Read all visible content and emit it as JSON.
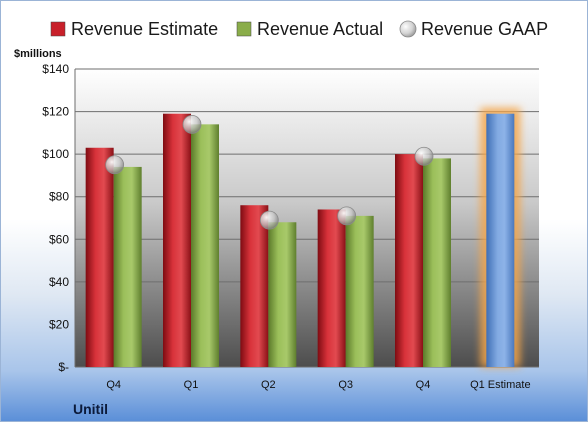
{
  "legend": [
    {
      "label": "Revenue Estimate",
      "color": "#c8202a"
    },
    {
      "label": "Revenue Actual",
      "color": "#8aad4a"
    },
    {
      "label": "Revenue GAAP",
      "color": "#c0c0c0"
    }
  ],
  "company": "Unitil",
  "chart_data": {
    "type": "bar",
    "ylabel": "$millions",
    "ylim": [
      0,
      140
    ],
    "yticks": [
      0,
      20,
      40,
      60,
      80,
      100,
      120,
      140
    ],
    "ytick_labels": [
      "$-",
      "$20",
      "$40",
      "$60",
      "$80",
      "$100",
      "$120",
      "$140"
    ],
    "categories": [
      "Q4",
      "Q1",
      "Q2",
      "Q3",
      "Q4",
      "Q1 Estimate"
    ],
    "series": [
      {
        "name": "Revenue Estimate",
        "color": "#c8202a",
        "values": [
          103,
          119,
          76,
          74,
          100,
          null
        ]
      },
      {
        "name": "Revenue Actual",
        "color": "#8aad4a",
        "values": [
          94,
          114,
          68,
          71,
          98,
          null
        ]
      },
      {
        "name": "Revenue GAAP",
        "color": "#c0c0c0",
        "values": [
          95,
          114,
          69,
          71,
          99,
          null
        ]
      }
    ],
    "forecast": {
      "category": "Q1 Estimate",
      "value": 119,
      "color": "#6f9bd8",
      "glow": "#f5a64a"
    },
    "grid": true
  }
}
